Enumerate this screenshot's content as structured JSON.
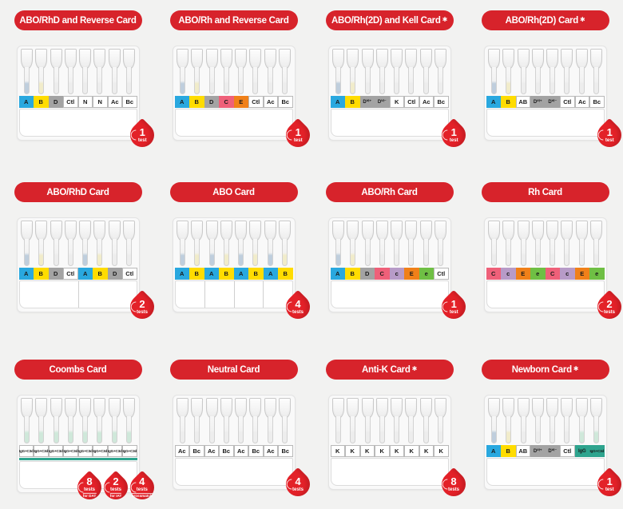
{
  "page": {
    "background": "#f2f2f1"
  },
  "star_char": "✱",
  "colors": {
    "banner_red": "#d7232b",
    "badge_red": "#e32128",
    "wells": {
      "blue": "#29a8df",
      "yellow": "#ffdc00",
      "gray": "#a3a3a3",
      "pink": "#ef6079",
      "purple": "#b79bc8",
      "orange": "#f08019",
      "green": "#6fbf44",
      "teal": "#2ea48e",
      "white": "#ffffff"
    },
    "gel": {
      "blue": "#bfcedd",
      "yellow": "#f1ecca",
      "clear": "#ededed",
      "mint": "#cfe8da"
    }
  },
  "cards": [
    {
      "title": "ABO/RhD and Reverse Card",
      "starred": false,
      "tubes": [
        "blue",
        "yellow",
        "clear",
        "clear",
        "clear",
        "clear",
        "clear",
        "clear"
      ],
      "wells": [
        {
          "label": "A",
          "color": "blue"
        },
        {
          "label": "B",
          "color": "yellow"
        },
        {
          "label": "D",
          "color": "gray"
        },
        {
          "label": "Ctl",
          "color": "white"
        },
        {
          "label": "N",
          "color": "white"
        },
        {
          "label": "N",
          "color": "white"
        },
        {
          "label": "Ac",
          "color": "white"
        },
        {
          "label": "Bc",
          "color": "white"
        }
      ],
      "dividers": [],
      "coombs_stripe": false,
      "badges": [
        {
          "count": "1",
          "unit": "test"
        }
      ]
    },
    {
      "title": "ABO/Rh and Reverse Card",
      "starred": false,
      "tubes": [
        "blue",
        "yellow",
        "clear",
        "clear",
        "clear",
        "clear",
        "clear",
        "clear"
      ],
      "wells": [
        {
          "label": "A",
          "color": "blue"
        },
        {
          "label": "B",
          "color": "yellow"
        },
        {
          "label": "D",
          "color": "gray"
        },
        {
          "label": "C",
          "color": "pink"
        },
        {
          "label": "E",
          "color": "orange"
        },
        {
          "label": "Ctl",
          "color": "white"
        },
        {
          "label": "Ac",
          "color": "white"
        },
        {
          "label": "Bc",
          "color": "white"
        }
      ],
      "dividers": [],
      "coombs_stripe": false,
      "badges": [
        {
          "count": "1",
          "unit": "test"
        }
      ]
    },
    {
      "title": "ABO/Rh(2D) and Kell Card",
      "starred": true,
      "tubes": [
        "blue",
        "yellow",
        "clear",
        "clear",
        "clear",
        "clear",
        "clear",
        "clear"
      ],
      "wells": [
        {
          "label": "A",
          "color": "blue"
        },
        {
          "label": "B",
          "color": "yellow"
        },
        {
          "label": "Dⱽᴵ⁺",
          "color": "gray",
          "size": "s"
        },
        {
          "label": "Dⱽᴵ⁻",
          "color": "gray",
          "size": "s"
        },
        {
          "label": "K",
          "color": "white"
        },
        {
          "label": "Ctl",
          "color": "white"
        },
        {
          "label": "Ac",
          "color": "white"
        },
        {
          "label": "Bc",
          "color": "white"
        }
      ],
      "dividers": [],
      "coombs_stripe": false,
      "badges": [
        {
          "count": "1",
          "unit": "test"
        }
      ]
    },
    {
      "title": "ABO/Rh(2D) Card",
      "starred": true,
      "tubes": [
        "blue",
        "yellow",
        "clear",
        "clear",
        "clear",
        "clear",
        "clear",
        "clear"
      ],
      "wells": [
        {
          "label": "A",
          "color": "blue"
        },
        {
          "label": "B",
          "color": "yellow"
        },
        {
          "label": "AB",
          "color": "white"
        },
        {
          "label": "Dⱽᴵ⁺",
          "color": "gray",
          "size": "s"
        },
        {
          "label": "Dⱽᴵ⁻",
          "color": "gray",
          "size": "s"
        },
        {
          "label": "Ctl",
          "color": "white"
        },
        {
          "label": "Ac",
          "color": "white"
        },
        {
          "label": "Bc",
          "color": "white"
        }
      ],
      "dividers": [],
      "coombs_stripe": false,
      "badges": [
        {
          "count": "1",
          "unit": "test"
        }
      ]
    },
    {
      "title": "ABO/RhD Card",
      "starred": false,
      "tubes": [
        "blue",
        "yellow",
        "clear",
        "clear",
        "blue",
        "yellow",
        "clear",
        "clear"
      ],
      "wells": [
        {
          "label": "A",
          "color": "blue"
        },
        {
          "label": "B",
          "color": "yellow"
        },
        {
          "label": "D",
          "color": "gray"
        },
        {
          "label": "Ctl",
          "color": "white"
        },
        {
          "label": "A",
          "color": "blue"
        },
        {
          "label": "B",
          "color": "yellow"
        },
        {
          "label": "D",
          "color": "gray"
        },
        {
          "label": "Ctl",
          "color": "white"
        }
      ],
      "dividers": [
        50
      ],
      "coombs_stripe": false,
      "badges": [
        {
          "count": "2",
          "unit": "tests"
        }
      ]
    },
    {
      "title": "ABO Card",
      "starred": false,
      "tubes": [
        "blue",
        "yellow",
        "blue",
        "yellow",
        "blue",
        "yellow",
        "blue",
        "yellow"
      ],
      "wells": [
        {
          "label": "A",
          "color": "blue"
        },
        {
          "label": "B",
          "color": "yellow"
        },
        {
          "label": "A",
          "color": "blue"
        },
        {
          "label": "B",
          "color": "yellow"
        },
        {
          "label": "A",
          "color": "blue"
        },
        {
          "label": "B",
          "color": "yellow"
        },
        {
          "label": "A",
          "color": "blue"
        },
        {
          "label": "B",
          "color": "yellow"
        }
      ],
      "dividers": [
        25,
        50,
        75
      ],
      "coombs_stripe": false,
      "badges": [
        {
          "count": "4",
          "unit": "tests"
        }
      ]
    },
    {
      "title": "ABO/Rh Card",
      "starred": false,
      "tubes": [
        "blue",
        "yellow",
        "clear",
        "clear",
        "clear",
        "clear",
        "clear",
        "clear"
      ],
      "wells": [
        {
          "label": "A",
          "color": "blue"
        },
        {
          "label": "B",
          "color": "yellow"
        },
        {
          "label": "D",
          "color": "gray"
        },
        {
          "label": "C",
          "color": "pink"
        },
        {
          "label": "c",
          "color": "purple"
        },
        {
          "label": "E",
          "color": "orange"
        },
        {
          "label": "e",
          "color": "green"
        },
        {
          "label": "Ctl",
          "color": "white"
        }
      ],
      "dividers": [],
      "coombs_stripe": false,
      "badges": [
        {
          "count": "1",
          "unit": "test"
        }
      ]
    },
    {
      "title": "Rh Card",
      "starred": false,
      "tubes": [
        "clear",
        "clear",
        "clear",
        "clear",
        "clear",
        "clear",
        "clear",
        "clear"
      ],
      "wells": [
        {
          "label": "C",
          "color": "pink"
        },
        {
          "label": "c",
          "color": "purple"
        },
        {
          "label": "E",
          "color": "orange"
        },
        {
          "label": "e",
          "color": "green"
        },
        {
          "label": "C",
          "color": "pink"
        },
        {
          "label": "c",
          "color": "purple"
        },
        {
          "label": "E",
          "color": "orange"
        },
        {
          "label": "e",
          "color": "green"
        }
      ],
      "dividers": [],
      "coombs_stripe": false,
      "badges": [
        {
          "count": "2",
          "unit": "tests"
        }
      ]
    },
    {
      "title": "Coombs Card",
      "starred": false,
      "tubes": [
        "mint",
        "mint",
        "mint",
        "mint",
        "mint",
        "mint",
        "mint",
        "mint"
      ],
      "wells": [
        {
          "label": "IgG+C3d",
          "color": "white",
          "size": "xs"
        },
        {
          "label": "IgG+C3d",
          "color": "white",
          "size": "xs"
        },
        {
          "label": "IgG+C3d",
          "color": "white",
          "size": "xs"
        },
        {
          "label": "IgG+C3d",
          "color": "white",
          "size": "xs"
        },
        {
          "label": "IgG+C3d",
          "color": "white",
          "size": "xs"
        },
        {
          "label": "IgG+C3d",
          "color": "white",
          "size": "xs"
        },
        {
          "label": "IgG+C3d",
          "color": "white",
          "size": "xs"
        },
        {
          "label": "IgG+C3d",
          "color": "white",
          "size": "xs"
        }
      ],
      "dividers": [],
      "coombs_stripe": true,
      "badges": [
        {
          "count": "8",
          "unit": "tests",
          "sub": "for DAT"
        },
        {
          "count": "2",
          "unit": "tests",
          "sub": "for IAT"
        },
        {
          "count": "4",
          "unit": "tests",
          "sub": "crossmatch"
        }
      ]
    },
    {
      "title": "Neutral Card",
      "starred": false,
      "tubes": [
        "clear",
        "clear",
        "clear",
        "clear",
        "clear",
        "clear",
        "clear",
        "clear"
      ],
      "wells": [
        {
          "label": "Ac",
          "color": "white"
        },
        {
          "label": "Bc",
          "color": "white"
        },
        {
          "label": "Ac",
          "color": "white"
        },
        {
          "label": "Bc",
          "color": "white"
        },
        {
          "label": "Ac",
          "color": "white"
        },
        {
          "label": "Bc",
          "color": "white"
        },
        {
          "label": "Ac",
          "color": "white"
        },
        {
          "label": "Bc",
          "color": "white"
        }
      ],
      "dividers": [],
      "coombs_stripe": false,
      "badges": [
        {
          "count": "4",
          "unit": "tests"
        }
      ]
    },
    {
      "title": "Anti-K Card",
      "starred": true,
      "tubes": [
        "clear",
        "clear",
        "clear",
        "clear",
        "clear",
        "clear",
        "clear",
        "clear"
      ],
      "wells": [
        {
          "label": "K",
          "color": "white"
        },
        {
          "label": "K",
          "color": "white"
        },
        {
          "label": "K",
          "color": "white"
        },
        {
          "label": "K",
          "color": "white"
        },
        {
          "label": "K",
          "color": "white"
        },
        {
          "label": "K",
          "color": "white"
        },
        {
          "label": "K",
          "color": "white"
        },
        {
          "label": "K",
          "color": "white"
        }
      ],
      "dividers": [],
      "coombs_stripe": false,
      "badges": [
        {
          "count": "8",
          "unit": "tests"
        }
      ]
    },
    {
      "title": "Newborn Card",
      "starred": true,
      "tubes": [
        "blue",
        "yellow",
        "clear",
        "clear",
        "clear",
        "clear",
        "mint",
        "mint"
      ],
      "wells": [
        {
          "label": "A",
          "color": "blue"
        },
        {
          "label": "B",
          "color": "yellow"
        },
        {
          "label": "AB",
          "color": "white"
        },
        {
          "label": "Dⱽᴵ⁺",
          "color": "gray",
          "size": "s"
        },
        {
          "label": "Dⱽᴵ⁻",
          "color": "gray",
          "size": "s"
        },
        {
          "label": "Ctl",
          "color": "white"
        },
        {
          "label": "IgG",
          "color": "teal",
          "size": "s"
        },
        {
          "label": "IgG+C3d",
          "color": "teal",
          "size": "xs"
        }
      ],
      "dividers": [],
      "coombs_stripe": false,
      "badges": [
        {
          "count": "1",
          "unit": "test"
        }
      ]
    }
  ]
}
